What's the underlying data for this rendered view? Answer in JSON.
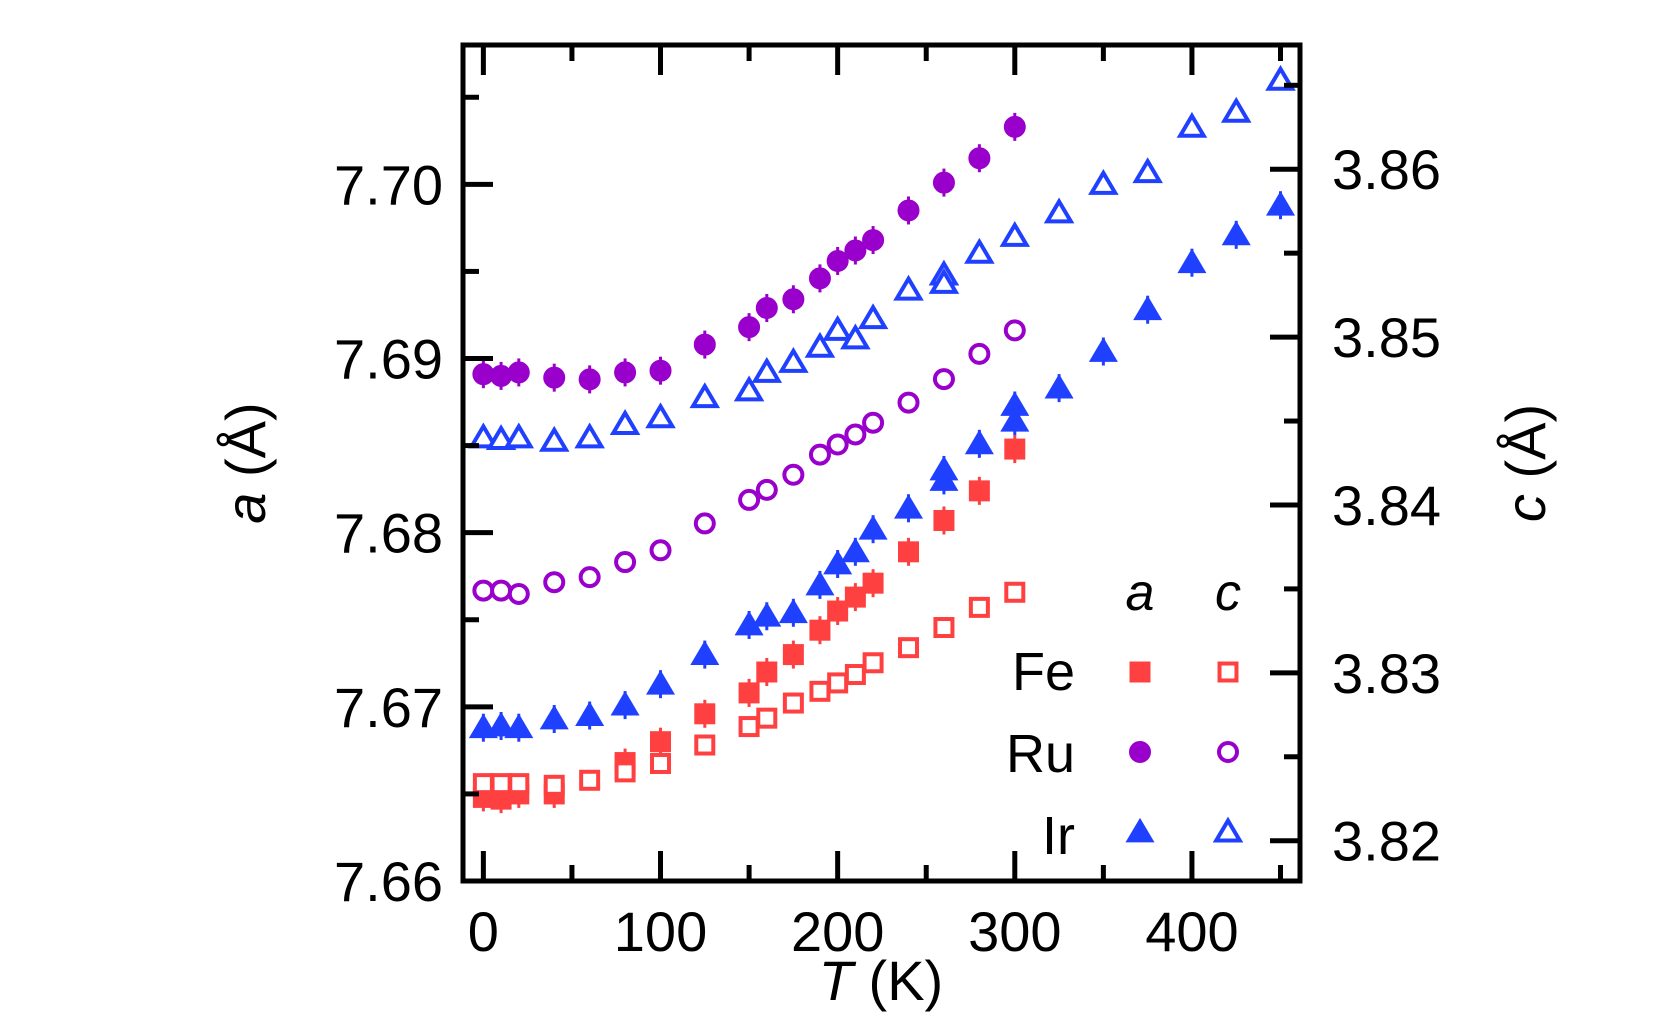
{
  "chart_data": {
    "type": "scatter",
    "xlabel": {
      "italic": "T",
      "rest": " (K)"
    },
    "ylabel_left": {
      "italic": "a",
      "rest": " (Å)"
    },
    "ylabel_right": {
      "italic": "c",
      "rest": " (Å)"
    },
    "xlim": [
      -11.5,
      461
    ],
    "ylim_left": [
      7.66,
      7.708
    ],
    "ylim_right": [
      3.8176,
      3.8674
    ],
    "x_ticks": [
      0,
      100,
      200,
      300,
      400
    ],
    "x_tick_labels": [
      "0",
      "100",
      "200",
      "300",
      "400"
    ],
    "y_left_ticks": [
      7.66,
      7.67,
      7.68,
      7.69,
      7.7
    ],
    "y_left_tick_labels": [
      "7.66",
      "7.67",
      "7.68",
      "7.69",
      "7.70"
    ],
    "y_right_ticks": [
      3.82,
      3.83,
      3.84,
      3.85,
      3.86
    ],
    "y_right_tick_labels": [
      "3.82",
      "3.83",
      "3.84",
      "3.85",
      "3.86"
    ],
    "grid": false,
    "legend": {
      "placement": "bottom-right",
      "column_headers": [
        "a",
        "c"
      ],
      "rows": [
        "Fe",
        "Ru",
        "Ir"
      ]
    },
    "colors": {
      "Fe": "#ff4040",
      "Ru": "#9900cc",
      "Ir": "#2040ff"
    },
    "series": [
      {
        "element": "Fe",
        "param": "a",
        "axis": "left",
        "marker": "square",
        "filled": true,
        "x": [
          0,
          10,
          20,
          40,
          80,
          100,
          125,
          150,
          160,
          175,
          190,
          200,
          210,
          220,
          240,
          260,
          280,
          300
        ],
        "y": [
          7.6648,
          7.6647,
          7.665,
          7.665,
          7.6668,
          7.668,
          7.6696,
          7.6708,
          7.672,
          7.673,
          7.6744,
          7.6755,
          7.6763,
          7.6771,
          7.6789,
          7.6807,
          7.6824,
          7.6848
        ]
      },
      {
        "element": "Fe",
        "param": "c",
        "axis": "right",
        "marker": "square",
        "filled": false,
        "x": [
          0,
          10,
          20,
          40,
          60,
          80,
          100,
          125,
          150,
          160,
          175,
          190,
          200,
          210,
          220,
          240,
          260,
          280,
          300
        ],
        "y": [
          3.8234,
          3.8234,
          3.8234,
          3.8233,
          3.8236,
          3.8241,
          3.8246,
          3.8257,
          3.8268,
          3.8273,
          3.8282,
          3.8289,
          3.8294,
          3.8299,
          3.8306,
          3.8315,
          3.8327,
          3.8339,
          3.8348
        ]
      },
      {
        "element": "Ru",
        "param": "a",
        "axis": "left",
        "marker": "circle",
        "filled": true,
        "x": [
          0,
          10,
          20,
          40,
          60,
          80,
          100,
          125,
          150,
          160,
          175,
          190,
          200,
          210,
          220,
          240,
          260,
          280,
          300
        ],
        "y": [
          7.6891,
          7.689,
          7.6892,
          7.6889,
          7.6888,
          7.6892,
          7.6893,
          7.6908,
          7.6918,
          7.6929,
          7.6934,
          7.6946,
          7.6956,
          7.6962,
          7.6968,
          7.6985,
          7.7001,
          7.7015,
          7.7033
        ]
      },
      {
        "element": "Ru",
        "param": "c",
        "axis": "right",
        "marker": "circle",
        "filled": false,
        "x": [
          0,
          10,
          20,
          40,
          60,
          80,
          100,
          125,
          150,
          160,
          175,
          190,
          200,
          210,
          220,
          240,
          260,
          280,
          300
        ],
        "y": [
          3.8349,
          3.8349,
          3.8347,
          3.8354,
          3.8357,
          3.8366,
          3.8373,
          3.8389,
          3.8403,
          3.8409,
          3.8418,
          3.843,
          3.8436,
          3.8442,
          3.8449,
          3.8461,
          3.8475,
          3.849,
          3.8504
        ]
      },
      {
        "element": "Ir",
        "param": "a",
        "axis": "left",
        "marker": "triangle",
        "filled": true,
        "x": [
          0,
          10,
          20,
          40,
          60,
          80,
          100,
          125,
          150,
          160,
          175,
          190,
          200,
          210,
          220,
          240,
          260,
          260,
          280,
          300,
          300,
          325,
          350,
          375,
          400,
          425,
          450
        ],
        "y": [
          7.6688,
          7.6689,
          7.6688,
          7.6693,
          7.6695,
          7.6701,
          7.6713,
          7.673,
          7.6747,
          7.6752,
          7.6754,
          7.677,
          7.6782,
          7.6789,
          7.6802,
          7.6814,
          7.6836,
          7.683,
          7.6851,
          7.6873,
          7.6864,
          7.6883,
          7.6904,
          7.6928,
          7.6955,
          7.6971,
          7.6988
        ]
      },
      {
        "element": "Ir",
        "param": "c",
        "axis": "right",
        "marker": "triangle",
        "filled": false,
        "x": [
          0,
          10,
          20,
          40,
          60,
          80,
          100,
          125,
          150,
          160,
          175,
          190,
          200,
          210,
          220,
          240,
          260,
          260,
          280,
          300,
          325,
          350,
          375,
          400,
          425,
          450
        ],
        "y": [
          3.844,
          3.8439,
          3.844,
          3.8438,
          3.844,
          3.8448,
          3.8452,
          3.8464,
          3.8468,
          3.8479,
          3.8485,
          3.8494,
          3.8504,
          3.8499,
          3.8511,
          3.8528,
          3.8537,
          3.8532,
          3.855,
          3.856,
          3.8574,
          3.8591,
          3.8598,
          3.8625,
          3.8634,
          3.8653
        ]
      }
    ]
  }
}
